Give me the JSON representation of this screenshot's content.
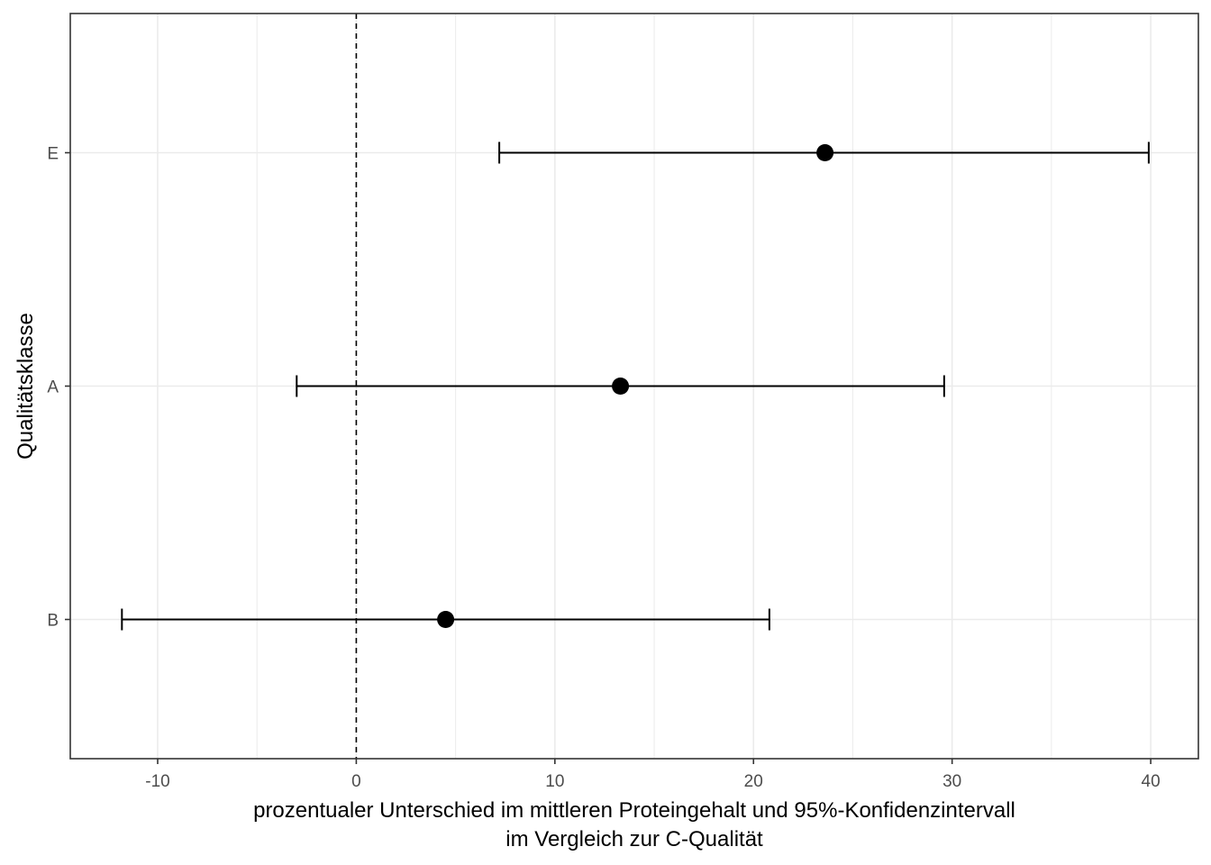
{
  "chart_data": {
    "type": "scatter",
    "orientation": "horizontal",
    "title": "",
    "xlabel_line1": "prozentualer Unterschied im mittleren Proteingehalt und 95%-Konfidenzintervall",
    "xlabel_line2": "im Vergleich zur C-Qualität",
    "ylabel": "Qualitätsklasse",
    "xlim": [
      -14.4,
      42.4
    ],
    "x_ticks": [
      -10,
      0,
      10,
      20,
      30,
      40
    ],
    "x_tick_labels": [
      "-10",
      "0",
      "10",
      "20",
      "30",
      "40"
    ],
    "categories": [
      "B",
      "A",
      "E"
    ],
    "points": [
      {
        "category": "B",
        "estimate": 4.5,
        "lower": -11.8,
        "upper": 20.8
      },
      {
        "category": "A",
        "estimate": 13.3,
        "lower": -3.0,
        "upper": 29.6
      },
      {
        "category": "E",
        "estimate": 23.6,
        "lower": 7.2,
        "upper": 39.9
      }
    ],
    "reference_line": {
      "x": 0,
      "style": "dashed"
    },
    "grid": true,
    "legend": "none",
    "colors": {
      "points": "#000000",
      "grid": "#ebebeb",
      "panel_border": "#333333"
    }
  }
}
